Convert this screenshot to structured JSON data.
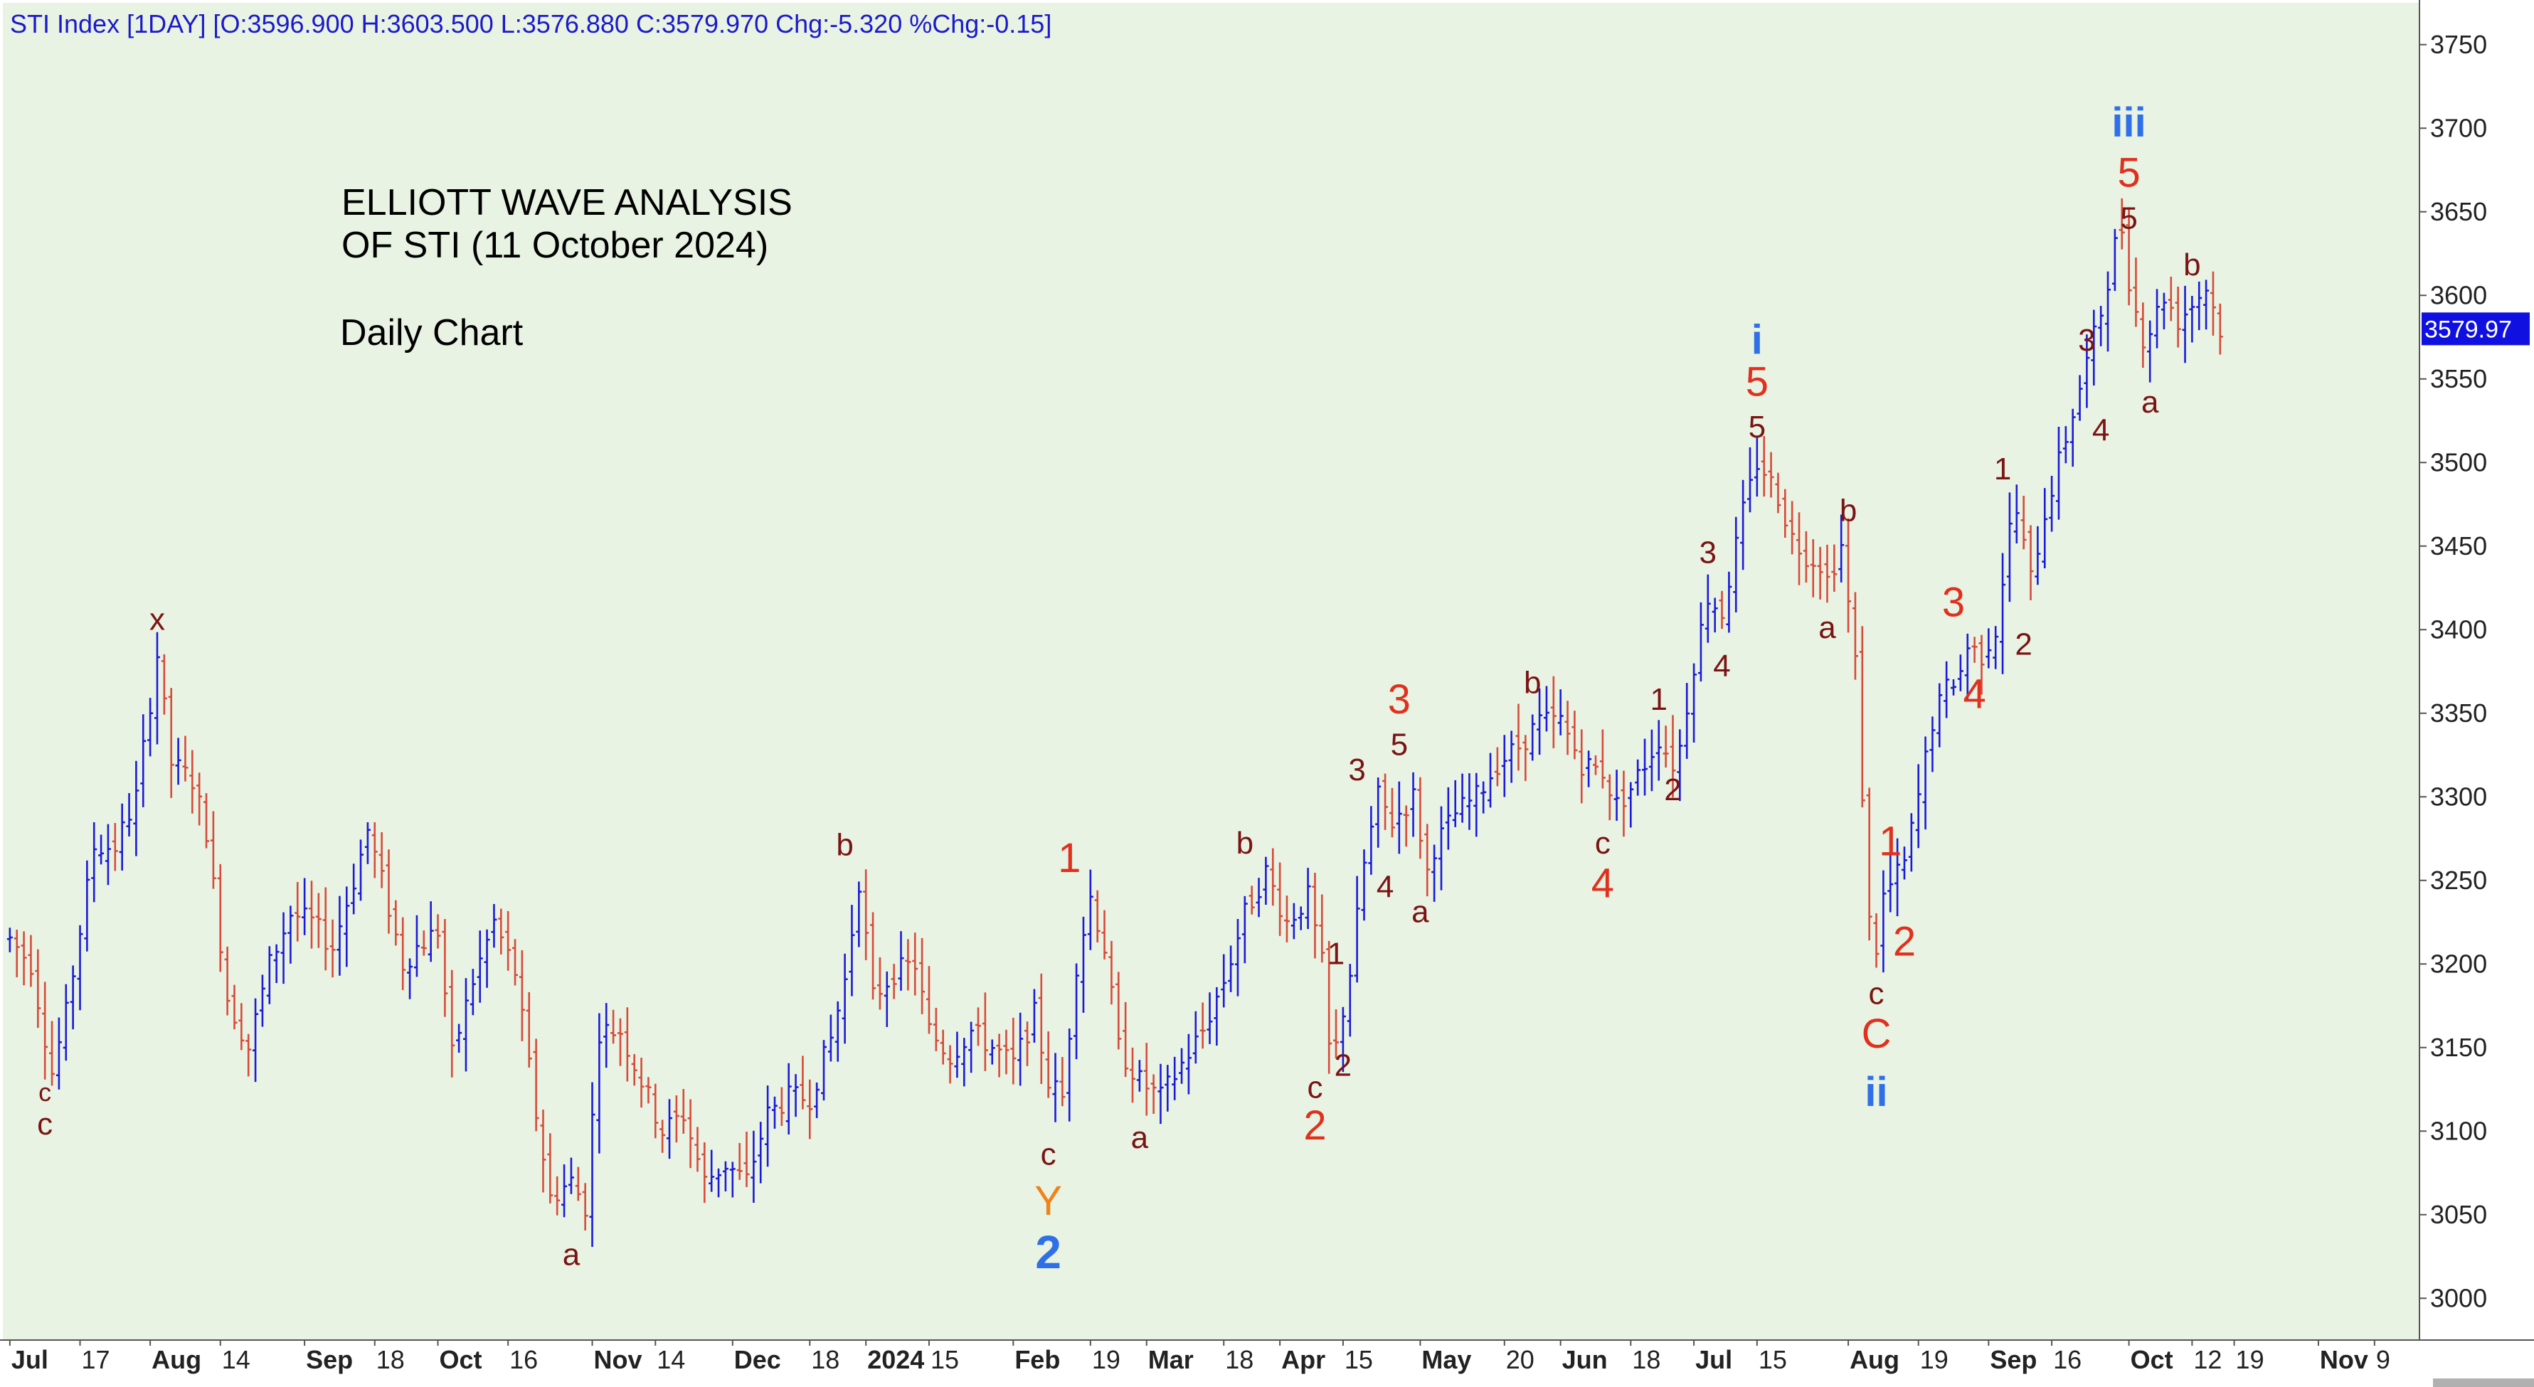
{
  "header": "STI Index [1DAY] [O:3596.900 H:3603.500 L:3576.880 C:3579.970 Chg:-5.320 %Chg:-0.15]",
  "title_lines": [
    "ELLIOTT WAVE ANALYSIS",
    "OF STI (11 October 2024)"
  ],
  "subtitle": "Daily Chart",
  "last_price_label": "3579.97",
  "colors": {
    "plot_bg": "#e9f3e3",
    "up_bar": "#1a1adb",
    "down_bar": "#d84a3a",
    "wave_red": "#e0301e",
    "wave_dark": "#7a1414",
    "wave_blue": "#2f6fe8",
    "wave_orange": "#f08218",
    "last_price_bg": "#1010e0",
    "text": "#000000"
  },
  "chart_data": {
    "type": "ohlc",
    "ylim": [
      2975,
      3775
    ],
    "yticks": [
      3000,
      3050,
      3100,
      3150,
      3200,
      3250,
      3300,
      3350,
      3400,
      3450,
      3500,
      3550,
      3600,
      3650,
      3700,
      3750
    ],
    "xticks": [
      {
        "label": "Jul",
        "x": 0,
        "bold": true
      },
      {
        "label": "17",
        "x": 10
      },
      {
        "label": "Aug",
        "x": 20,
        "bold": true
      },
      {
        "label": "14",
        "x": 30
      },
      {
        "label": "Sep",
        "x": 42,
        "bold": true
      },
      {
        "label": "18",
        "x": 52
      },
      {
        "label": "Oct",
        "x": 61,
        "bold": true
      },
      {
        "label": "16",
        "x": 71
      },
      {
        "label": "Nov",
        "x": 83,
        "bold": true
      },
      {
        "label": "14",
        "x": 92
      },
      {
        "label": "Dec",
        "x": 103,
        "bold": true
      },
      {
        "label": "18",
        "x": 114
      },
      {
        "label": "2024",
        "x": 122,
        "bold": true
      },
      {
        "label": "15",
        "x": 131
      },
      {
        "label": "Feb",
        "x": 143,
        "bold": true
      },
      {
        "label": "19",
        "x": 154
      },
      {
        "label": "Mar",
        "x": 162,
        "bold": true
      },
      {
        "label": "18",
        "x": 173
      },
      {
        "label": "Apr",
        "x": 181,
        "bold": true
      },
      {
        "label": "15",
        "x": 190
      },
      {
        "label": "May",
        "x": 201,
        "bold": true
      },
      {
        "label": "20",
        "x": 213
      },
      {
        "label": "Jun",
        "x": 221,
        "bold": true
      },
      {
        "label": "18",
        "x": 231
      },
      {
        "label": "Jul",
        "x": 240,
        "bold": true
      },
      {
        "label": "15",
        "x": 249
      },
      {
        "label": "Aug",
        "x": 262,
        "bold": true
      },
      {
        "label": "19",
        "x": 272
      },
      {
        "label": "Sep",
        "x": 282,
        "bold": true
      },
      {
        "label": "16",
        "x": 291
      },
      {
        "label": "Oct",
        "x": 302,
        "bold": true
      },
      {
        "label": "12",
        "x": 311
      },
      {
        "label": "19",
        "x": 317
      },
      {
        "label": "Nov",
        "x": 329,
        "bold": true
      },
      {
        "label": "9",
        "x": 337
      }
    ],
    "xlim": [
      -1,
      343
    ],
    "anchors": [
      [
        0,
        3215
      ],
      [
        3,
        3200
      ],
      [
        6,
        3135
      ],
      [
        8,
        3170
      ],
      [
        12,
        3270
      ],
      [
        15,
        3270
      ],
      [
        18,
        3300
      ],
      [
        21,
        3385
      ],
      [
        23,
        3320
      ],
      [
        26,
        3310
      ],
      [
        28,
        3280
      ],
      [
        31,
        3180
      ],
      [
        34,
        3150
      ],
      [
        37,
        3200
      ],
      [
        40,
        3230
      ],
      [
        43,
        3225
      ],
      [
        46,
        3210
      ],
      [
        49,
        3250
      ],
      [
        51,
        3280
      ],
      [
        53,
        3250
      ],
      [
        56,
        3200
      ],
      [
        58,
        3210
      ],
      [
        61,
        3220
      ],
      [
        63,
        3145
      ],
      [
        66,
        3190
      ],
      [
        69,
        3225
      ],
      [
        72,
        3195
      ],
      [
        75,
        3110
      ],
      [
        77,
        3060
      ],
      [
        80,
        3070
      ],
      [
        82,
        3055
      ],
      [
        84,
        3160
      ],
      [
        87,
        3160
      ],
      [
        90,
        3130
      ],
      [
        93,
        3100
      ],
      [
        96,
        3110
      ],
      [
        99,
        3070
      ],
      [
        102,
        3080
      ],
      [
        105,
        3070
      ],
      [
        108,
        3110
      ],
      [
        111,
        3120
      ],
      [
        114,
        3120
      ],
      [
        117,
        3155
      ],
      [
        119,
        3190
      ],
      [
        121,
        3250
      ],
      [
        123,
        3180
      ],
      [
        126,
        3195
      ],
      [
        129,
        3200
      ],
      [
        131,
        3160
      ],
      [
        134,
        3145
      ],
      [
        137,
        3160
      ],
      [
        140,
        3150
      ],
      [
        143,
        3140
      ],
      [
        146,
        3170
      ],
      [
        148,
        3130
      ],
      [
        150,
        3120
      ],
      [
        152,
        3200
      ],
      [
        154,
        3240
      ],
      [
        156,
        3210
      ],
      [
        158,
        3150
      ],
      [
        161,
        3130
      ],
      [
        164,
        3120
      ],
      [
        167,
        3140
      ],
      [
        170,
        3160
      ],
      [
        173,
        3190
      ],
      [
        176,
        3230
      ],
      [
        179,
        3255
      ],
      [
        182,
        3225
      ],
      [
        185,
        3240
      ],
      [
        187,
        3200
      ],
      [
        188,
        3150
      ],
      [
        189,
        3150
      ],
      [
        191,
        3195
      ],
      [
        193,
        3260
      ],
      [
        195,
        3300
      ],
      [
        197,
        3285
      ],
      [
        200,
        3300
      ],
      [
        202,
        3255
      ],
      [
        203,
        3270
      ],
      [
        206,
        3290
      ],
      [
        209,
        3300
      ],
      [
        212,
        3320
      ],
      [
        215,
        3330
      ],
      [
        218,
        3345
      ],
      [
        221,
        3345
      ],
      [
        224,
        3320
      ],
      [
        227,
        3315
      ],
      [
        229,
        3295
      ],
      [
        231,
        3305
      ],
      [
        233,
        3320
      ],
      [
        235,
        3335
      ],
      [
        237,
        3320
      ],
      [
        238,
        3330
      ],
      [
        240,
        3380
      ],
      [
        242,
        3420
      ],
      [
        244,
        3410
      ],
      [
        246,
        3450
      ],
      [
        247,
        3470
      ],
      [
        249,
        3500
      ],
      [
        250,
        3495
      ],
      [
        252,
        3480
      ],
      [
        254,
        3455
      ],
      [
        256,
        3445
      ],
      [
        258,
        3440
      ],
      [
        259,
        3430
      ],
      [
        261,
        3450
      ],
      [
        263,
        3380
      ],
      [
        265,
        3225
      ],
      [
        266,
        3210
      ],
      [
        267,
        3240
      ],
      [
        270,
        3260
      ],
      [
        272,
        3300
      ],
      [
        274,
        3345
      ],
      [
        276,
        3365
      ],
      [
        278,
        3375
      ],
      [
        279,
        3390
      ],
      [
        281,
        3385
      ],
      [
        283,
        3400
      ],
      [
        285,
        3460
      ],
      [
        286,
        3470
      ],
      [
        288,
        3430
      ],
      [
        290,
        3470
      ],
      [
        292,
        3500
      ],
      [
        294,
        3530
      ],
      [
        296,
        3560
      ],
      [
        298,
        3590
      ],
      [
        300,
        3630
      ],
      [
        301,
        3640
      ],
      [
        302,
        3610
      ],
      [
        303,
        3590
      ],
      [
        304,
        3575
      ],
      [
        305,
        3580
      ],
      [
        307,
        3600
      ],
      [
        309,
        3585
      ],
      [
        311,
        3595
      ],
      [
        313,
        3605
      ],
      [
        315,
        3580
      ]
    ],
    "wave_labels": [
      {
        "text": "c",
        "x": 5,
        "y": 3118,
        "color": "wave_dark",
        "size": "s"
      },
      {
        "text": "c",
        "x": 5,
        "y": 3098,
        "color": "wave_dark",
        "size": "m"
      },
      {
        "text": "x",
        "x": 21,
        "y": 3400,
        "color": "wave_dark",
        "size": "m"
      },
      {
        "text": "a",
        "x": 80,
        "y": 3020,
        "color": "wave_dark",
        "size": "m"
      },
      {
        "text": "b",
        "x": 119,
        "y": 3265,
        "color": "wave_dark",
        "size": "m"
      },
      {
        "text": "1",
        "x": 151,
        "y": 3255,
        "color": "wave_red",
        "size": "l"
      },
      {
        "text": "c",
        "x": 148,
        "y": 3080,
        "color": "wave_dark",
        "size": "m"
      },
      {
        "text": "Y",
        "x": 148,
        "y": 3050,
        "color": "wave_orange",
        "size": "l"
      },
      {
        "text": "2",
        "x": 148,
        "y": 3018,
        "color": "wave_blue",
        "size": "xl"
      },
      {
        "text": "a",
        "x": 161,
        "y": 3090,
        "color": "wave_dark",
        "size": "m"
      },
      {
        "text": "b",
        "x": 176,
        "y": 3266,
        "color": "wave_dark",
        "size": "m"
      },
      {
        "text": "1",
        "x": 189,
        "y": 3200,
        "color": "wave_dark",
        "size": "m"
      },
      {
        "text": "2",
        "x": 190,
        "y": 3133,
        "color": "wave_dark",
        "size": "m"
      },
      {
        "text": "c",
        "x": 186,
        "y": 3120,
        "color": "wave_dark",
        "size": "m"
      },
      {
        "text": "2",
        "x": 186,
        "y": 3095,
        "color": "wave_red",
        "size": "l"
      },
      {
        "text": "3",
        "x": 192,
        "y": 3310,
        "color": "wave_dark",
        "size": "m"
      },
      {
        "text": "4",
        "x": 196,
        "y": 3240,
        "color": "wave_dark",
        "size": "m"
      },
      {
        "text": "3",
        "x": 198,
        "y": 3350,
        "color": "wave_red",
        "size": "l"
      },
      {
        "text": "5",
        "x": 198,
        "y": 3325,
        "color": "wave_dark",
        "size": "m"
      },
      {
        "text": "a",
        "x": 201,
        "y": 3225,
        "color": "wave_dark",
        "size": "m"
      },
      {
        "text": "b",
        "x": 217,
        "y": 3362,
        "color": "wave_dark",
        "size": "m"
      },
      {
        "text": "c",
        "x": 227,
        "y": 3266,
        "color": "wave_dark",
        "size": "m"
      },
      {
        "text": "4",
        "x": 227,
        "y": 3240,
        "color": "wave_red",
        "size": "l"
      },
      {
        "text": "1",
        "x": 235,
        "y": 3352,
        "color": "wave_dark",
        "size": "m"
      },
      {
        "text": "2",
        "x": 237,
        "y": 3298,
        "color": "wave_dark",
        "size": "m"
      },
      {
        "text": "3",
        "x": 242,
        "y": 3440,
        "color": "wave_dark",
        "size": "m"
      },
      {
        "text": "4",
        "x": 244,
        "y": 3372,
        "color": "wave_dark",
        "size": "m"
      },
      {
        "text": "i",
        "x": 249,
        "y": 3565,
        "color": "wave_blue",
        "size": "l"
      },
      {
        "text": "5",
        "x": 249,
        "y": 3540,
        "color": "wave_red",
        "size": "l"
      },
      {
        "text": "5",
        "x": 249,
        "y": 3515,
        "color": "wave_dark",
        "size": "m"
      },
      {
        "text": "a",
        "x": 259,
        "y": 3395,
        "color": "wave_dark",
        "size": "m"
      },
      {
        "text": "b",
        "x": 262,
        "y": 3465,
        "color": "wave_dark",
        "size": "m"
      },
      {
        "text": "c",
        "x": 266,
        "y": 3176,
        "color": "wave_dark",
        "size": "m"
      },
      {
        "text": "C",
        "x": 266,
        "y": 3150,
        "color": "wave_red",
        "size": "l"
      },
      {
        "text": "ii",
        "x": 266,
        "y": 3115,
        "color": "wave_blue",
        "size": "l"
      },
      {
        "text": "1",
        "x": 268,
        "y": 3265,
        "color": "wave_red",
        "size": "l"
      },
      {
        "text": "2",
        "x": 270,
        "y": 3205,
        "color": "wave_red",
        "size": "l"
      },
      {
        "text": "3",
        "x": 277,
        "y": 3408,
        "color": "wave_red",
        "size": "l"
      },
      {
        "text": "4",
        "x": 280,
        "y": 3353,
        "color": "wave_red",
        "size": "l"
      },
      {
        "text": "1",
        "x": 284,
        "y": 3490,
        "color": "wave_dark",
        "size": "m"
      },
      {
        "text": "2",
        "x": 287,
        "y": 3385,
        "color": "wave_dark",
        "size": "m"
      },
      {
        "text": "3",
        "x": 296,
        "y": 3567,
        "color": "wave_dark",
        "size": "m"
      },
      {
        "text": "4",
        "x": 298,
        "y": 3513,
        "color": "wave_dark",
        "size": "m"
      },
      {
        "text": "iii",
        "x": 302,
        "y": 3695,
        "color": "wave_blue",
        "size": "l"
      },
      {
        "text": "5",
        "x": 302,
        "y": 3665,
        "color": "wave_red",
        "size": "l"
      },
      {
        "text": "5",
        "x": 302,
        "y": 3640,
        "color": "wave_dark",
        "size": "m"
      },
      {
        "text": "a",
        "x": 305,
        "y": 3530,
        "color": "wave_dark",
        "size": "m"
      },
      {
        "text": "b",
        "x": 311,
        "y": 3612,
        "color": "wave_dark",
        "size": "m"
      }
    ]
  }
}
